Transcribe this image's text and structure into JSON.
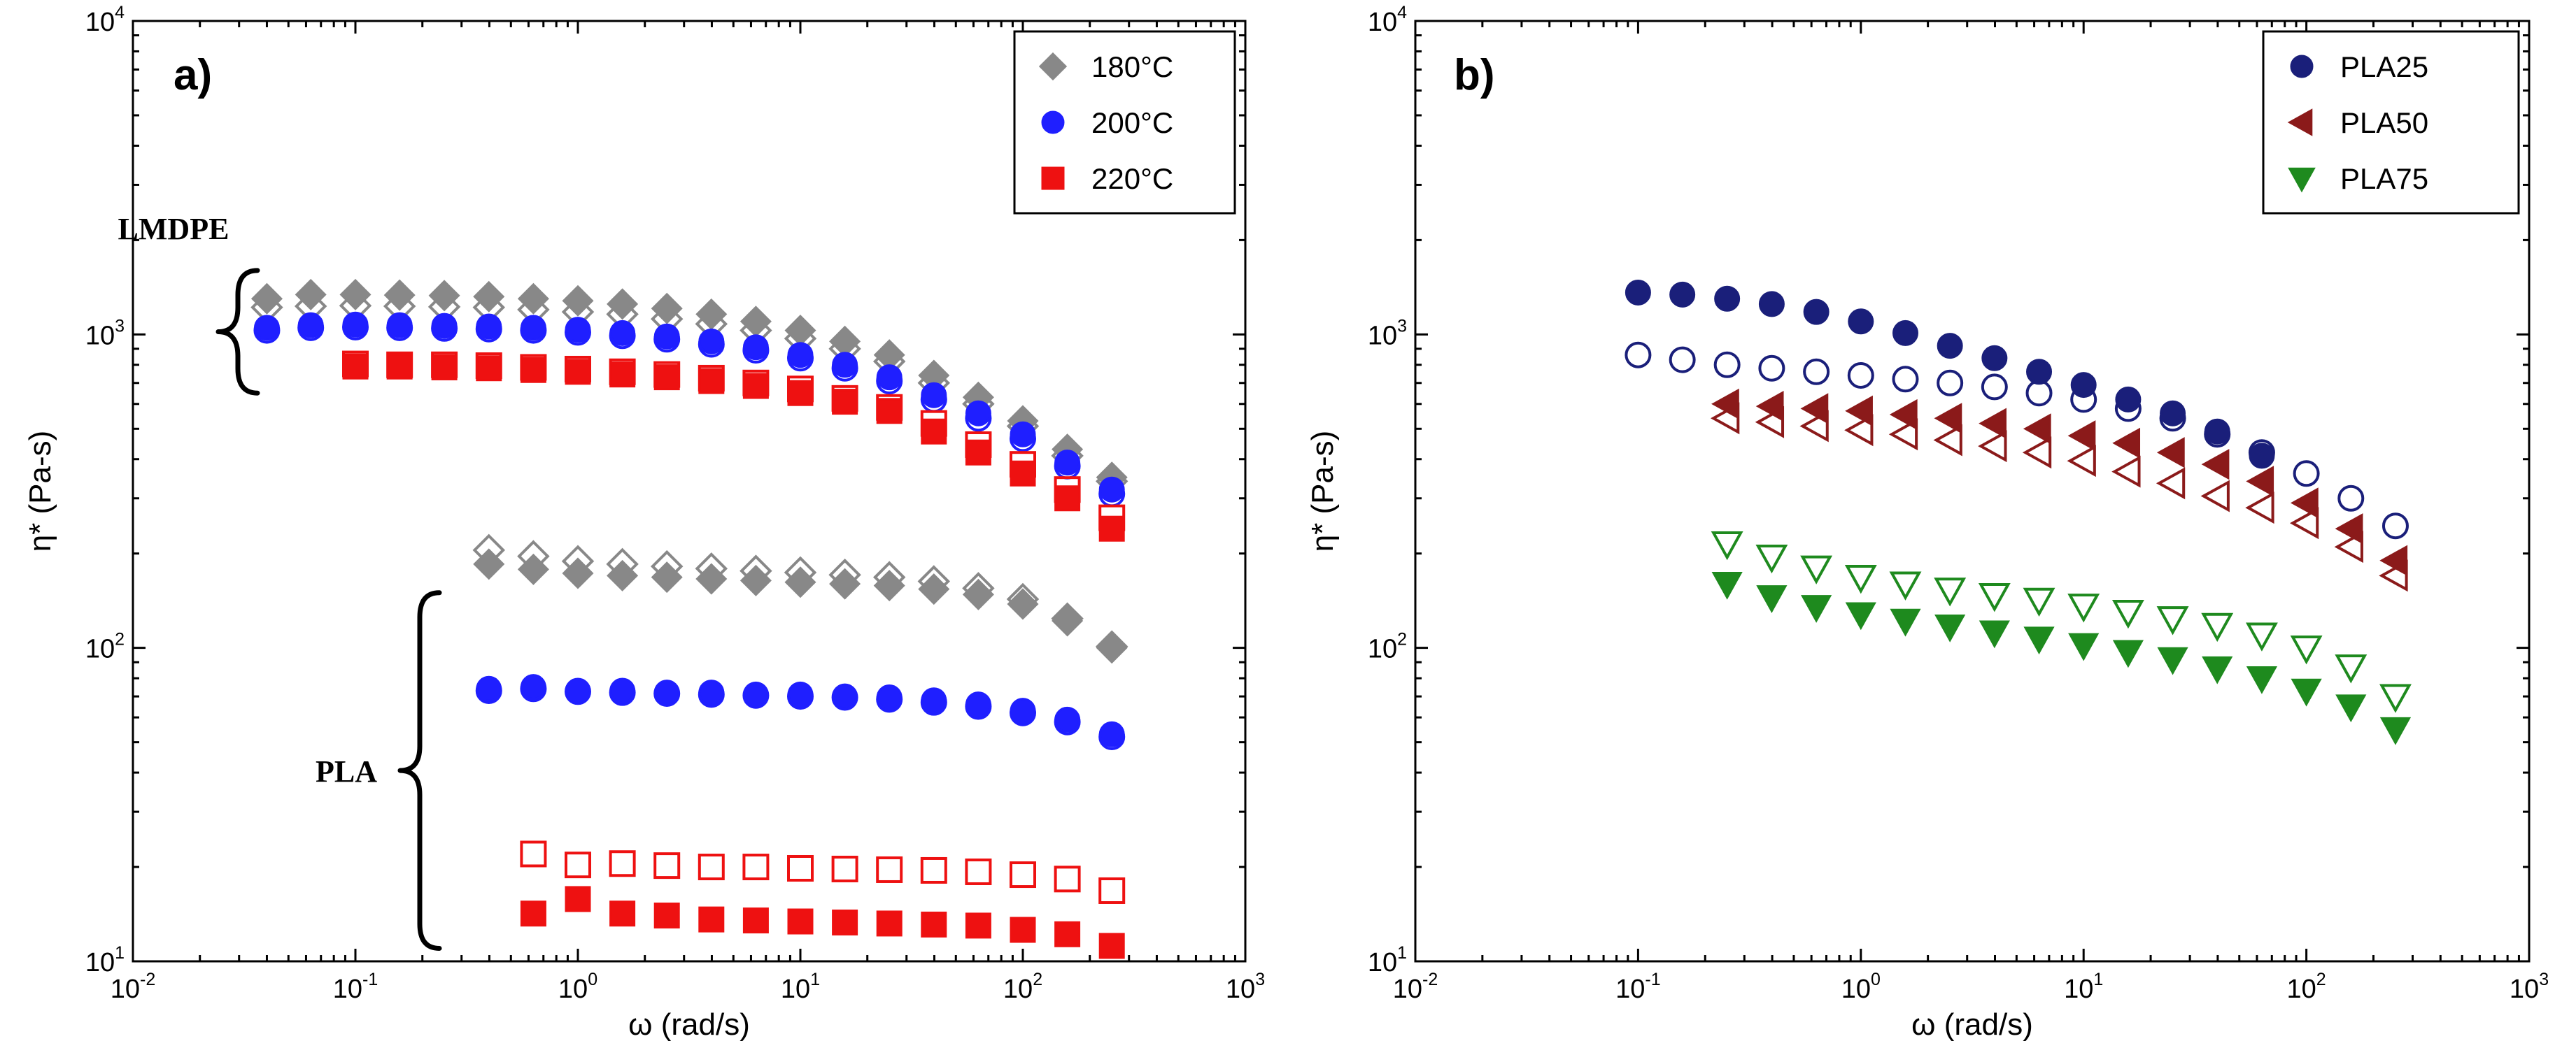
{
  "chart_data": [
    {
      "panel": "a",
      "type": "scatter",
      "title": "",
      "panel_label": "a)",
      "xlabel": "ω (rad/s)",
      "ylabel": "η* (Pa-s)",
      "xscale": "log",
      "yscale": "log",
      "xlim": [
        0.01,
        1000
      ],
      "ylim": [
        10,
        10000
      ],
      "x_ticks": [
        {
          "b": "10",
          "e": "-2"
        },
        {
          "b": "10",
          "e": "-1"
        },
        {
          "b": "10",
          "e": "0"
        },
        {
          "b": "10",
          "e": "1"
        },
        {
          "b": "10",
          "e": "2"
        },
        {
          "b": "10",
          "e": "3"
        }
      ],
      "y_ticks": [
        {
          "b": "10",
          "e": "1"
        },
        {
          "b": "10",
          "e": "2"
        },
        {
          "b": "10",
          "e": "3"
        },
        {
          "b": "10",
          "e": "4"
        }
      ],
      "legend": [
        {
          "label": "180°C",
          "marker": "diamond",
          "color": "#888888"
        },
        {
          "label": "200°C",
          "marker": "circle",
          "color": "#1f1fff"
        },
        {
          "label": "220°C",
          "marker": "square",
          "color": "#ee1111"
        }
      ],
      "legend_position": "top-right",
      "annotations": [
        {
          "text": "LMDPE",
          "brace_ylim": [
            650,
            1600
          ]
        },
        {
          "text": "PLA",
          "brace_ylim": [
            11,
            150
          ]
        }
      ],
      "series": [
        {
          "name": "LMDPE 180°C filled",
          "marker": "diamond",
          "filled": true,
          "color": "#888888",
          "x": [
            0.04,
            0.063,
            0.1,
            0.158,
            0.251,
            0.398,
            0.631,
            1,
            1.585,
            2.512,
            3.981,
            6.31,
            10,
            15.85,
            25.12,
            39.81,
            63.1,
            100,
            158.5,
            251.2
          ],
          "y": [
            1300,
            1340,
            1340,
            1335,
            1330,
            1320,
            1300,
            1280,
            1250,
            1210,
            1160,
            1100,
            1030,
            950,
            860,
            740,
            630,
            530,
            430,
            350
          ]
        },
        {
          "name": "LMDPE 180°C open",
          "marker": "diamond",
          "filled": false,
          "color": "#888888",
          "x": [
            0.04,
            0.063,
            0.1,
            0.158,
            0.251,
            0.398,
            0.631,
            1,
            1.585,
            2.512,
            3.981,
            6.31,
            10,
            15.85,
            25.12,
            39.81,
            63.1,
            100,
            158.5,
            251.2
          ],
          "y": [
            1220,
            1230,
            1235,
            1230,
            1225,
            1220,
            1200,
            1180,
            1160,
            1120,
            1080,
            1030,
            970,
            900,
            820,
            700,
            600,
            510,
            410,
            340
          ]
        },
        {
          "name": "LMDPE 200°C filled",
          "marker": "circle",
          "filled": true,
          "color": "#1f1fff",
          "x": [
            0.04,
            0.063,
            0.1,
            0.158,
            0.251,
            0.398,
            0.631,
            1,
            1.585,
            2.512,
            3.981,
            6.31,
            10,
            15.85,
            25.12,
            39.81,
            63.1,
            100,
            158.5,
            251.2
          ],
          "y": [
            1050,
            1070,
            1075,
            1070,
            1065,
            1060,
            1050,
            1035,
            1010,
            985,
            950,
            910,
            860,
            800,
            730,
            640,
            560,
            480,
            390,
            320
          ]
        },
        {
          "name": "LMDPE 200°C open",
          "marker": "circle",
          "filled": false,
          "color": "#1f1fff",
          "x": [
            0.04,
            0.063,
            0.1,
            0.158,
            0.251,
            0.398,
            0.631,
            1,
            1.585,
            2.512,
            3.981,
            6.31,
            10,
            15.85,
            25.12,
            39.81,
            63.1,
            100,
            158.5,
            251.2
          ],
          "y": [
            1030,
            1050,
            1055,
            1050,
            1045,
            1040,
            1030,
            1015,
            990,
            965,
            930,
            890,
            840,
            780,
            710,
            620,
            540,
            465,
            380,
            310
          ]
        },
        {
          "name": "LMDPE 220°C filled",
          "marker": "square",
          "filled": true,
          "color": "#ee1111",
          "x": [
            0.1,
            0.158,
            0.251,
            0.398,
            0.631,
            1,
            1.585,
            2.512,
            3.981,
            6.31,
            10,
            15.85,
            25.12,
            39.81,
            63.1,
            100,
            158.5,
            251.2
          ],
          "y": [
            790,
            790,
            785,
            780,
            770,
            760,
            745,
            730,
            710,
            685,
            650,
            610,
            570,
            490,
            420,
            360,
            300,
            240
          ]
        },
        {
          "name": "LMDPE 220°C open",
          "marker": "square",
          "filled": false,
          "color": "#ee1111",
          "x": [
            0.1,
            0.158,
            0.251,
            0.398,
            0.631,
            1,
            1.585,
            2.512,
            3.981,
            6.31,
            10,
            15.85,
            25.12,
            39.81,
            63.1,
            100,
            158.5,
            251.2
          ],
          "y": [
            805,
            800,
            800,
            795,
            785,
            775,
            760,
            745,
            725,
            700,
            670,
            625,
            585,
            520,
            445,
            385,
            320,
            260
          ]
        },
        {
          "name": "PLA 180°C filled",
          "marker": "diamond",
          "filled": true,
          "color": "#888888",
          "x": [
            0.398,
            0.631,
            1,
            1.585,
            2.512,
            3.981,
            6.31,
            10,
            15.85,
            25.12,
            39.81,
            63.1,
            100,
            158.5,
            251.2
          ],
          "y": [
            185,
            178,
            173,
            170,
            168,
            166,
            164,
            162,
            160,
            158,
            154,
            148,
            138,
            122,
            100
          ]
        },
        {
          "name": "PLA 180°C open",
          "marker": "diamond",
          "filled": false,
          "color": "#888888",
          "x": [
            0.398,
            0.631,
            1,
            1.585,
            2.512,
            3.981,
            6.31,
            10,
            15.85,
            25.12,
            39.81,
            63.1,
            100,
            158.5,
            251.2
          ],
          "y": [
            205,
            196,
            189,
            185,
            182,
            179,
            176,
            174,
            171,
            168,
            163,
            155,
            143,
            124,
            101
          ]
        },
        {
          "name": "PLA 200°C filled",
          "marker": "circle",
          "filled": true,
          "color": "#1f1fff",
          "x": [
            0.398,
            0.631,
            1,
            1.585,
            2.512,
            3.981,
            6.31,
            10,
            15.85,
            25.12,
            39.81,
            63.1,
            100,
            158.5,
            251.2
          ],
          "y": [
            74,
            75,
            73,
            73,
            72,
            72,
            71,
            71,
            70,
            69.5,
            68,
            66,
            63,
            59,
            53
          ]
        },
        {
          "name": "PLA 200°C open",
          "marker": "circle",
          "filled": false,
          "color": "#1f1fff",
          "x": [
            0.398,
            0.631,
            1,
            1.585,
            2.512,
            3.981,
            6.31,
            10,
            15.85,
            25.12,
            39.81,
            63.1,
            100,
            158.5,
            251.2
          ],
          "y": [
            73,
            74,
            72.5,
            72,
            71.5,
            71,
            70.5,
            70,
            69.5,
            68.5,
            67,
            65,
            62,
            58,
            52
          ]
        },
        {
          "name": "PLA 220°C filled",
          "marker": "square",
          "filled": true,
          "color": "#ee1111",
          "x": [
            0.631,
            1,
            1.585,
            2.512,
            3.981,
            6.31,
            10,
            15.85,
            25.12,
            39.81,
            63.1,
            100,
            158.5,
            251.2
          ],
          "y": [
            14.2,
            15.8,
            14.2,
            14,
            13.6,
            13.5,
            13.4,
            13.3,
            13.2,
            13.1,
            13,
            12.6,
            12.2,
            11.2
          ]
        },
        {
          "name": "PLA 220°C open",
          "marker": "square",
          "filled": false,
          "color": "#ee1111",
          "x": [
            0.631,
            1,
            1.585,
            2.512,
            3.981,
            6.31,
            10,
            15.85,
            25.12,
            39.81,
            63.1,
            100,
            158.5,
            251.2
          ],
          "y": [
            22,
            20.3,
            20.5,
            20.2,
            20,
            20,
            19.8,
            19.7,
            19.6,
            19.5,
            19.3,
            18.9,
            18.3,
            16.8
          ]
        }
      ]
    },
    {
      "panel": "b",
      "type": "scatter",
      "title": "",
      "panel_label": "b)",
      "xlabel": "ω (rad/s)",
      "ylabel": "η* (Pa-s)",
      "xscale": "log",
      "yscale": "log",
      "xlim": [
        0.01,
        1000
      ],
      "ylim": [
        10,
        10000
      ],
      "x_ticks": [
        {
          "b": "10",
          "e": "-2"
        },
        {
          "b": "10",
          "e": "-1"
        },
        {
          "b": "10",
          "e": "0"
        },
        {
          "b": "10",
          "e": "1"
        },
        {
          "b": "10",
          "e": "2"
        },
        {
          "b": "10",
          "e": "3"
        }
      ],
      "y_ticks": [
        {
          "b": "10",
          "e": "1"
        },
        {
          "b": "10",
          "e": "2"
        },
        {
          "b": "10",
          "e": "3"
        },
        {
          "b": "10",
          "e": "4"
        }
      ],
      "legend": [
        {
          "label": "PLA25",
          "marker": "circle",
          "color": "#1a1f7a"
        },
        {
          "label": "PLA50",
          "marker": "triangle-left",
          "color": "#8b1a1a"
        },
        {
          "label": "PLA75",
          "marker": "triangle-down",
          "color": "#1e8a1e"
        }
      ],
      "legend_position": "top-right",
      "series": [
        {
          "name": "PLA25 filled",
          "marker": "circle",
          "filled": true,
          "color": "#1a1f7a",
          "x": [
            0.1,
            0.158,
            0.251,
            0.398,
            0.631,
            1,
            1.585,
            2.512,
            3.981,
            6.31,
            10,
            15.85,
            25.12,
            39.81,
            63.1
          ],
          "y": [
            1360,
            1340,
            1300,
            1250,
            1180,
            1100,
            1010,
            920,
            840,
            760,
            690,
            620,
            560,
            490,
            410
          ]
        },
        {
          "name": "PLA25 open",
          "marker": "circle",
          "filled": false,
          "color": "#1a1f7a",
          "x": [
            0.1,
            0.158,
            0.251,
            0.398,
            0.631,
            1,
            1.585,
            2.512,
            3.981,
            6.31,
            10,
            15.85,
            25.12,
            39.81,
            63.1,
            100,
            158.5,
            251.2
          ],
          "y": [
            860,
            830,
            800,
            780,
            760,
            740,
            720,
            700,
            680,
            650,
            620,
            580,
            540,
            480,
            420,
            360,
            300,
            245
          ]
        },
        {
          "name": "PLA50 filled",
          "marker": "triangle-left",
          "filled": true,
          "color": "#8b1a1a",
          "x": [
            0.251,
            0.398,
            0.631,
            1,
            1.585,
            2.512,
            3.981,
            6.31,
            10,
            15.85,
            25.12,
            39.81,
            63.1,
            100,
            158.5,
            251.2
          ],
          "y": [
            600,
            590,
            580,
            570,
            555,
            540,
            520,
            500,
            475,
            450,
            420,
            385,
            340,
            290,
            240,
            190
          ]
        },
        {
          "name": "PLA50 open",
          "marker": "triangle-left",
          "filled": false,
          "color": "#8b1a1a",
          "x": [
            0.251,
            0.398,
            0.631,
            1,
            1.585,
            2.512,
            3.981,
            6.31,
            10,
            15.85,
            25.12,
            39.81,
            63.1,
            100,
            158.5,
            251.2
          ],
          "y": [
            540,
            525,
            510,
            495,
            480,
            460,
            440,
            420,
            395,
            365,
            335,
            305,
            280,
            250,
            210,
            170
          ]
        },
        {
          "name": "PLA75 filled",
          "marker": "triangle-down",
          "filled": true,
          "color": "#1e8a1e",
          "x": [
            0.251,
            0.398,
            0.631,
            1,
            1.585,
            2.512,
            3.981,
            6.31,
            10,
            15.85,
            25.12,
            39.81,
            63.1,
            100,
            158.5,
            251.2
          ],
          "y": [
            160,
            145,
            135,
            128,
            122,
            117,
            112,
            107,
            102,
            97,
            92,
            86,
            80,
            73,
            65,
            55
          ]
        },
        {
          "name": "PLA75 open",
          "marker": "triangle-down",
          "filled": false,
          "color": "#1e8a1e",
          "x": [
            0.251,
            0.398,
            0.631,
            1,
            1.585,
            2.512,
            3.981,
            6.31,
            10,
            15.85,
            25.12,
            39.81,
            63.1,
            100,
            158.5,
            251.2
          ],
          "y": [
            215,
            195,
            180,
            168,
            160,
            153,
            147,
            142,
            136,
            130,
            124,
            118,
            110,
            100,
            87,
            70
          ]
        }
      ]
    }
  ]
}
